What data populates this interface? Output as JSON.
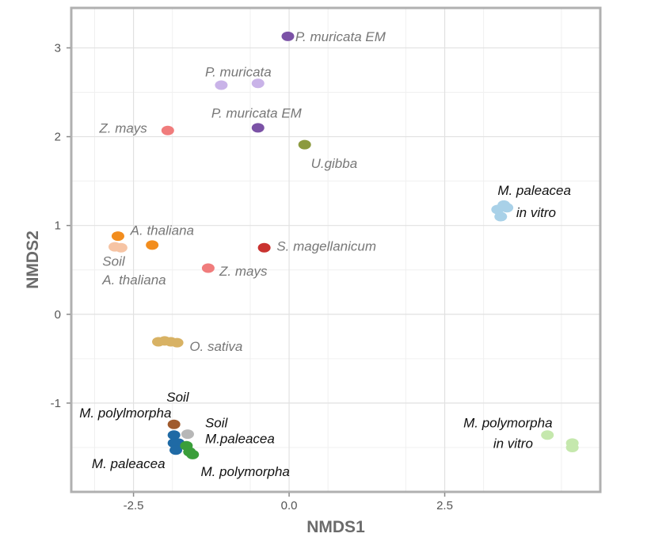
{
  "chart_data": {
    "type": "scatter",
    "xlabel": "NMDS1",
    "ylabel": "NMDS2",
    "xlim": [
      -3.5,
      5.0
    ],
    "ylim": [
      -2.0,
      3.45
    ],
    "x_ticks": [
      -2.5,
      0.0,
      2.5
    ],
    "x_tick_labels": [
      "-2.5",
      "0.0",
      "2.5"
    ],
    "y_ticks": [
      -1,
      0,
      1,
      2,
      3
    ],
    "y_tick_labels": [
      "-1",
      "0",
      "1",
      "2",
      "3"
    ],
    "grid": true,
    "series": [
      {
        "color": "#7b52a6",
        "points": [
          [
            -0.02,
            3.13
          ],
          [
            -0.5,
            2.1
          ]
        ]
      },
      {
        "color": "#c9b3e8",
        "points": [
          [
            -1.09,
            2.58
          ],
          [
            -0.5,
            2.6
          ]
        ]
      },
      {
        "color": "#f07c7c",
        "points": [
          [
            -1.95,
            2.07
          ],
          [
            -1.3,
            0.52
          ]
        ]
      },
      {
        "color": "#8c9a3f",
        "points": [
          [
            0.25,
            1.91
          ]
        ]
      },
      {
        "color": "#a9d1e8",
        "points": [
          [
            3.35,
            1.18
          ],
          [
            3.45,
            1.23
          ],
          [
            3.5,
            1.2
          ],
          [
            3.4,
            1.1
          ]
        ]
      },
      {
        "color": "#f28d1e",
        "points": [
          [
            -2.75,
            0.88
          ],
          [
            -2.2,
            0.78
          ]
        ]
      },
      {
        "color": "#f6c4a4",
        "points": [
          [
            -2.8,
            0.76
          ],
          [
            -2.7,
            0.75
          ]
        ]
      },
      {
        "color": "#c9322f",
        "points": [
          [
            -0.4,
            0.75
          ]
        ]
      },
      {
        "color": "#d8b264",
        "points": [
          [
            -2.1,
            -0.31
          ],
          [
            -2.0,
            -0.3
          ],
          [
            -1.9,
            -0.31
          ],
          [
            -1.8,
            -0.32
          ]
        ]
      },
      {
        "color": "#a05a2c",
        "points": [
          [
            -1.85,
            -1.24
          ]
        ]
      },
      {
        "color": "#b7b7b7",
        "points": [
          [
            -1.63,
            -1.35
          ]
        ]
      },
      {
        "color": "#1f6aa5",
        "points": [
          [
            -1.85,
            -1.36
          ],
          [
            -1.85,
            -1.45
          ],
          [
            -1.78,
            -1.45
          ],
          [
            -1.82,
            -1.53
          ]
        ]
      },
      {
        "color": "#3a9e3a",
        "points": [
          [
            -1.65,
            -1.48
          ],
          [
            -1.6,
            -1.55
          ],
          [
            -1.55,
            -1.58
          ]
        ]
      },
      {
        "color": "#c5e8ad",
        "points": [
          [
            4.15,
            -1.36
          ],
          [
            4.55,
            -1.45
          ],
          [
            4.55,
            -1.5
          ]
        ]
      }
    ],
    "annotations": [
      {
        "text": "P. muricata EM",
        "x": 0.1,
        "y": 3.13,
        "color": "#777777"
      },
      {
        "text": "P. muricata",
        "x": -1.35,
        "y": 2.73,
        "color": "#777777"
      },
      {
        "text": "P. muricata EM",
        "x": -1.25,
        "y": 2.27,
        "color": "#777777"
      },
      {
        "text": "Z. mays",
        "x": -3.05,
        "y": 2.1,
        "color": "#777777"
      },
      {
        "text": "U.gibba",
        "x": 0.35,
        "y": 1.7,
        "color": "#777777"
      },
      {
        "text": "M. paleacea",
        "x": 3.35,
        "y": 1.4,
        "color": "#111111"
      },
      {
        "text": "in vitro",
        "x": 3.65,
        "y": 1.15,
        "color": "#111111"
      },
      {
        "text": "A. thaliana",
        "x": -2.55,
        "y": 0.95,
        "color": "#777777"
      },
      {
        "text": "Soil",
        "x": -3.0,
        "y": 0.6,
        "color": "#777777"
      },
      {
        "text": "S. magellanicum",
        "x": -0.2,
        "y": 0.77,
        "color": "#777777"
      },
      {
        "text": "Z. mays",
        "x": -1.12,
        "y": 0.49,
        "color": "#777777"
      },
      {
        "text": "A. thaliana",
        "x": -3.0,
        "y": 0.39,
        "color": "#777777"
      },
      {
        "text": "O. sativa",
        "x": -1.6,
        "y": -0.36,
        "color": "#777777"
      },
      {
        "text": "Soil",
        "x": -1.97,
        "y": -0.93,
        "color": "#111111"
      },
      {
        "text": "M. polylmorpha",
        "x": -3.37,
        "y": -1.11,
        "color": "#111111"
      },
      {
        "text": "Soil",
        "x": -1.35,
        "y": -1.22,
        "color": "#111111"
      },
      {
        "text": "M.paleacea",
        "x": -1.35,
        "y": -1.4,
        "color": "#111111"
      },
      {
        "text": "M. polymorpha",
        "x": 2.8,
        "y": -1.22,
        "color": "#111111"
      },
      {
        "text": "in vitro",
        "x": 3.28,
        "y": -1.45,
        "color": "#111111"
      },
      {
        "text": "M. paleacea",
        "x": -3.17,
        "y": -1.68,
        "color": "#111111"
      },
      {
        "text": "M. polymorpha",
        "x": -1.42,
        "y": -1.77,
        "color": "#111111"
      }
    ]
  }
}
